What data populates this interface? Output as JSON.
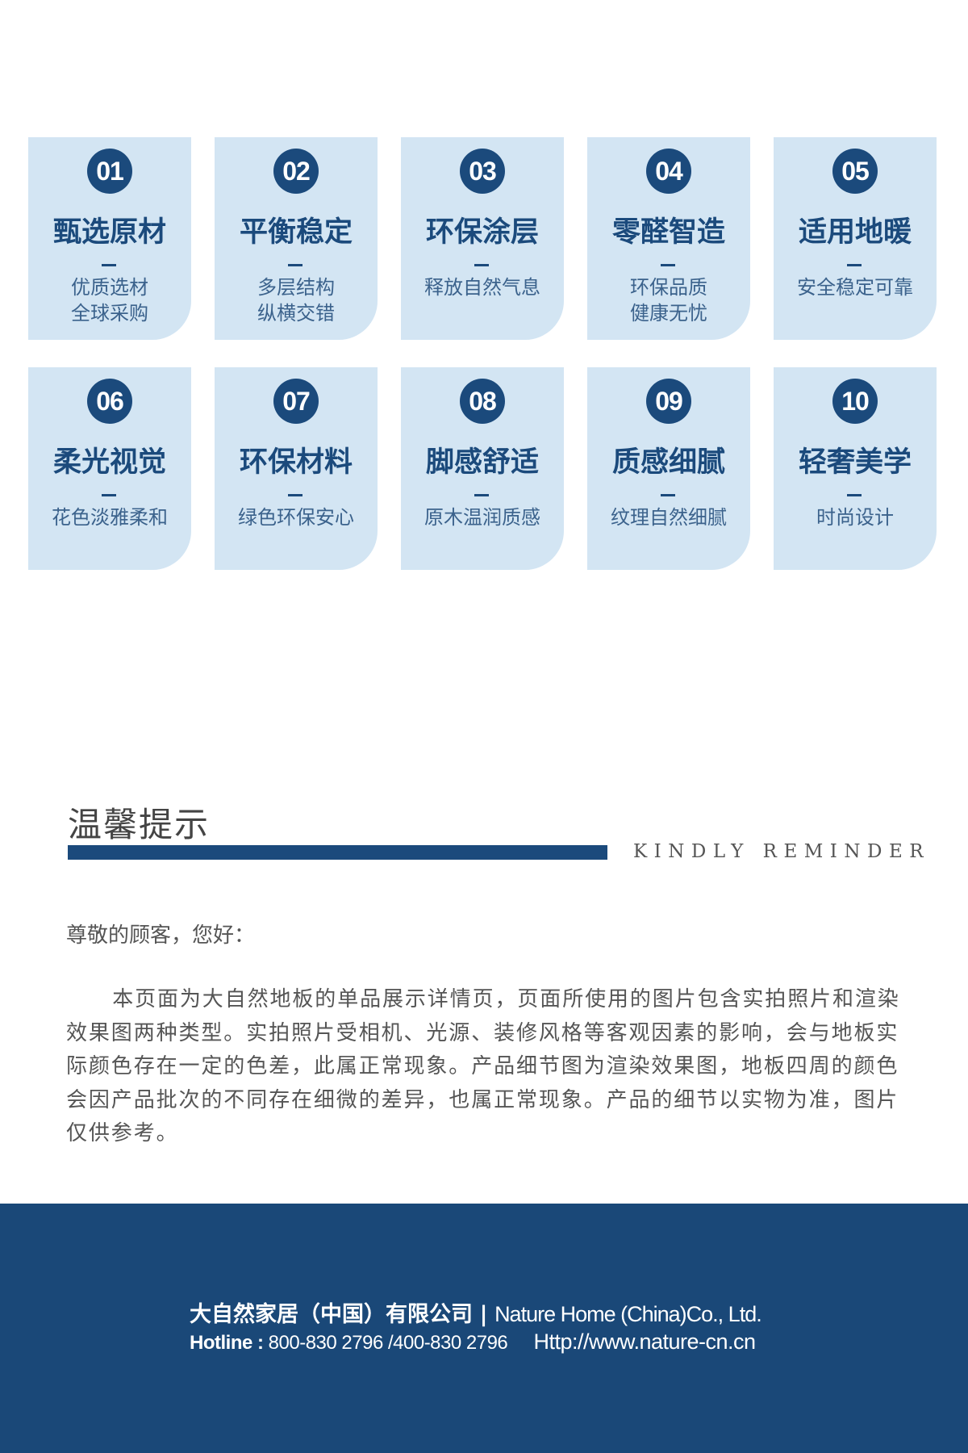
{
  "colors": {
    "brand": "#1b4a7c",
    "card_bg": "#d3e5f3",
    "footer_bg": "#1a4878"
  },
  "features": [
    {
      "num": "01",
      "title": "甄选原材",
      "lines": [
        "优质选材",
        "全球采购"
      ]
    },
    {
      "num": "02",
      "title": "平衡稳定",
      "lines": [
        "多层结构",
        "纵横交错"
      ]
    },
    {
      "num": "03",
      "title": "环保涂层",
      "lines": [
        "释放自然气息"
      ]
    },
    {
      "num": "04",
      "title": "零醛智造",
      "lines": [
        "环保品质",
        "健康无忧"
      ]
    },
    {
      "num": "05",
      "title": "适用地暖",
      "lines": [
        "安全稳定可靠"
      ]
    },
    {
      "num": "06",
      "title": "柔光视觉",
      "lines": [
        "花色淡雅柔和"
      ]
    },
    {
      "num": "07",
      "title": "环保材料",
      "lines": [
        "绿色环保安心"
      ]
    },
    {
      "num": "08",
      "title": "脚感舒适",
      "lines": [
        "原木温润质感"
      ]
    },
    {
      "num": "09",
      "title": "质感细腻",
      "lines": [
        "纹理自然细腻"
      ]
    },
    {
      "num": "10",
      "title": "轻奢美学",
      "lines": [
        "时尚设计"
      ]
    }
  ],
  "reminder": {
    "title": "温馨提示",
    "subtitle": "KINDLY REMINDER",
    "greeting": "尊敬的顾客，您好：",
    "body": "本页面为大自然地板的单品展示详情页，页面所使用的图片包含实拍照片和渲染效果图两种类型。实拍照片受相机、光源、装修风格等客观因素的影响，会与地板实际颜色存在一定的色差，此属正常现象。产品细节图为渲染效果图，地板四周的颜色会因产品批次的不同存在细微的差异，也属正常现象。产品的细节以实物为准，图片仅供参考。"
  },
  "footer": {
    "company_cn": "大自然家居（中国）有限公司",
    "separator": "|",
    "company_en": "Nature Home (China)Co., Ltd.",
    "hotline_label": "Hotline :",
    "hotline": "800-830 2796 /400-830 2796",
    "url": "Http://www.nature-cn.cn"
  }
}
